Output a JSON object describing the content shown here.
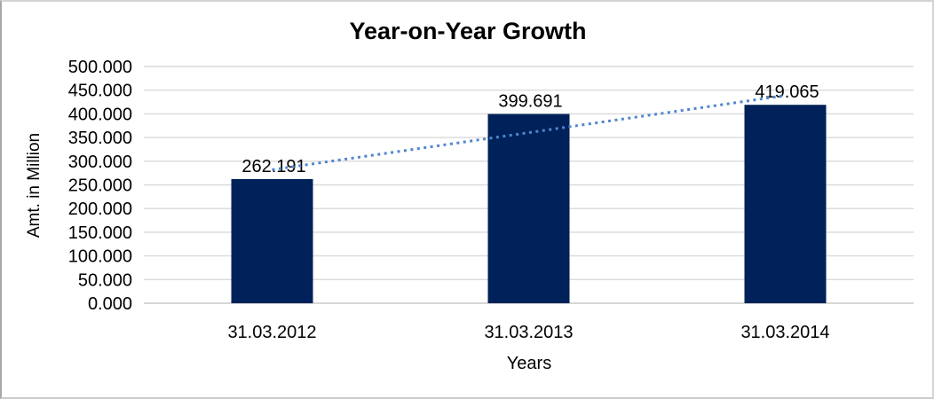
{
  "chart_data": {
    "type": "bar",
    "title": "Year-on-Year Growth",
    "xlabel": "Years",
    "ylabel": "Amt. in Million",
    "categories": [
      "31.03.2012",
      "31.03.2013",
      "31.03.2014"
    ],
    "values": [
      262.191,
      399.691,
      419.065
    ],
    "data_labels": [
      "262.191",
      "399.691",
      "419.065"
    ],
    "ylim": [
      0,
      500
    ],
    "y_tick_step": 50,
    "y_tick_labels": [
      "0.000",
      "50.000",
      "100.000",
      "150.000",
      "200.000",
      "250.000",
      "300.000",
      "350.000",
      "400.000",
      "450.000",
      "500.000"
    ],
    "grid": "horizontal",
    "legend": "none",
    "bar_color": "#002159",
    "trendline": {
      "type": "linear",
      "style": "dotted",
      "color": "#4f87ce"
    },
    "gridline_color": "#dadada",
    "axis_line_color": "#d6d6d6",
    "text_color": "#000000"
  }
}
